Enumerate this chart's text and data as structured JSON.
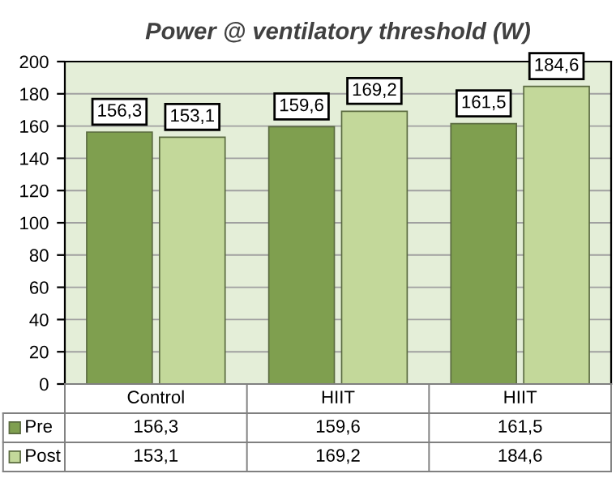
{
  "chart_data": {
    "type": "bar",
    "title": "Power @ ventilatory threshold (W)",
    "categories": [
      "Control",
      "HIIT",
      "HIIT"
    ],
    "series": [
      {
        "name": "Pre",
        "color": "#7f9f4f",
        "values": [
          156.3,
          159.6,
          161.5
        ],
        "value_labels": [
          "156,3",
          "159,6",
          "161,5"
        ]
      },
      {
        "name": "Post",
        "color": "#c3d89a",
        "values": [
          153.1,
          169.2,
          184.6
        ],
        "value_labels": [
          "153,1",
          "169,2",
          "184,6"
        ]
      }
    ],
    "ylim": [
      0,
      200
    ],
    "yticks": [
      0,
      20,
      40,
      60,
      80,
      100,
      120,
      140,
      160,
      180,
      200
    ],
    "grid": "y",
    "legend": "bottom"
  }
}
